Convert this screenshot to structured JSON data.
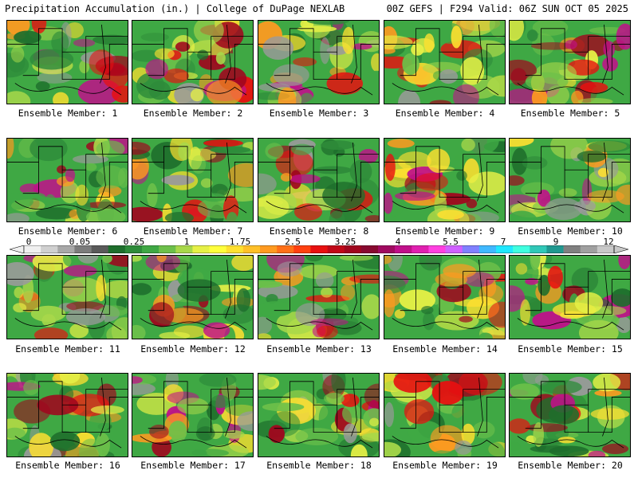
{
  "header": {
    "left": "Precipitation Accumulation (in.) | College of DuPage NEXLAB",
    "right": "00Z GEFS | F294 Valid: 06Z SUN OCT 05 2025"
  },
  "colorbar": {
    "labels": [
      "0",
      "0.05",
      "0.25",
      "1",
      "1.75",
      "2.5",
      "3.25",
      "4",
      "5.5",
      "7",
      "9",
      "12"
    ],
    "colors": [
      "#f0f0f0",
      "#d0d0d0",
      "#a8a8a8",
      "#7c7c7c",
      "#5a5a5a",
      "#1e6e2c",
      "#2e8b3a",
      "#3fa844",
      "#6cc04a",
      "#a8d84a",
      "#e6f046",
      "#ffff3c",
      "#ffe030",
      "#ffc028",
      "#ff9a20",
      "#ff7018",
      "#ff4010",
      "#e81010",
      "#c00818",
      "#a0061e",
      "#880a30",
      "#a00a60",
      "#c0108a",
      "#e020b0",
      "#ff40e0",
      "#d060ff",
      "#8080ff",
      "#40b8ff",
      "#20e8ff",
      "#40ffe0",
      "#30c8b8",
      "#209890",
      "#808080",
      "#a0a0a0",
      "#c8c8c8"
    ]
  },
  "panels": [
    {
      "label": "Ensemble Member: 1"
    },
    {
      "label": "Ensemble Member: 2"
    },
    {
      "label": "Ensemble Member: 3"
    },
    {
      "label": "Ensemble Member: 4"
    },
    {
      "label": "Ensemble Member: 5"
    },
    {
      "label": "Ensemble Member: 6"
    },
    {
      "label": "Ensemble Member: 7"
    },
    {
      "label": "Ensemble Member: 8"
    },
    {
      "label": "Ensemble Member: 9"
    },
    {
      "label": "Ensemble Member: 10"
    },
    {
      "label": "Ensemble Member: 11"
    },
    {
      "label": "Ensemble Member: 12"
    },
    {
      "label": "Ensemble Member: 13"
    },
    {
      "label": "Ensemble Member: 14"
    },
    {
      "label": "Ensemble Member: 15"
    },
    {
      "label": "Ensemble Member: 16"
    },
    {
      "label": "Ensemble Member: 17"
    },
    {
      "label": "Ensemble Member: 18"
    },
    {
      "label": "Ensemble Member: 19"
    },
    {
      "label": "Ensemble Member: 20"
    }
  ]
}
